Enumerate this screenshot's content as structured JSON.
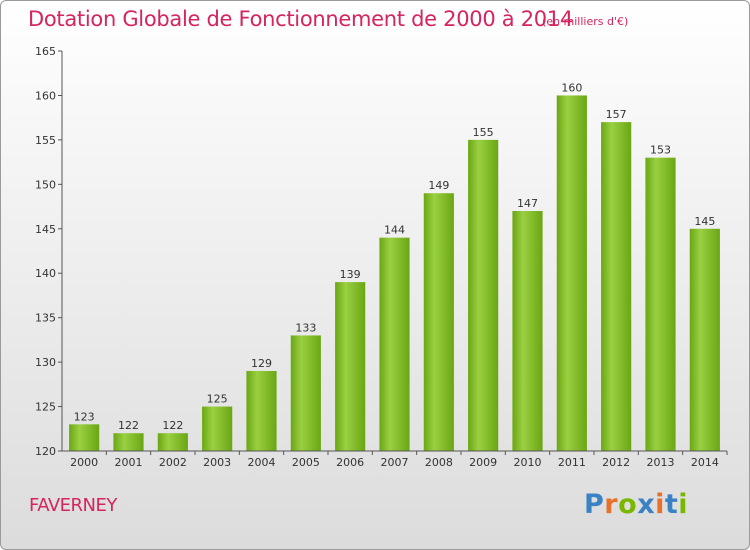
{
  "title": "Dotation Globale de Fonctionnement de 2000 à 2014",
  "subtitle": "(en milliers d'€)",
  "commune": "FAVERNEY",
  "logo": {
    "text": "Proxiti",
    "letters": [
      "P",
      "r",
      "o",
      "x",
      "i",
      "t",
      "i"
    ],
    "colors": [
      "#3b82c4",
      "#e8702a",
      "#7ab800",
      "#3b82c4",
      "#e8702a",
      "#3b82c4",
      "#7ab800"
    ]
  },
  "chart_data": {
    "type": "bar",
    "categories": [
      "2000",
      "2001",
      "2002",
      "2003",
      "2004",
      "2005",
      "2006",
      "2007",
      "2008",
      "2009",
      "2010",
      "2011",
      "2012",
      "2013",
      "2014"
    ],
    "values": [
      123,
      122,
      122,
      125,
      129,
      133,
      139,
      144,
      149,
      155,
      147,
      160,
      157,
      153,
      145
    ],
    "title": "Dotation Globale de Fonctionnement de 2000 à 2014",
    "subtitle": "(en milliers d'€)",
    "ylim": [
      120,
      165
    ],
    "yticks": [
      120,
      125,
      130,
      135,
      140,
      145,
      150,
      155,
      160,
      165
    ],
    "grid": false,
    "bar_color": "#7ab51d"
  }
}
